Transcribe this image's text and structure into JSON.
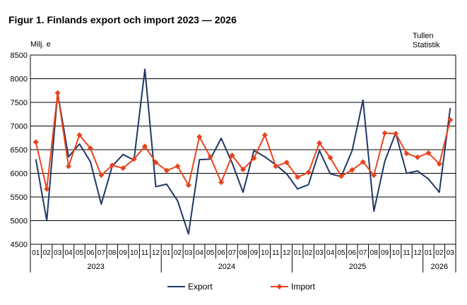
{
  "chart_data": {
    "type": "line",
    "title": "Figur 1. Finlands export och import 2023 — 2026",
    "ylabel": "Milj. e",
    "source": [
      "Tullen",
      "Statistik"
    ],
    "ylim": [
      4500,
      8500
    ],
    "yticks": [
      4500,
      5000,
      5500,
      6000,
      6500,
      7000,
      7500,
      8000,
      8500
    ],
    "grid": true,
    "legend_position": "bottom",
    "months": [
      "01",
      "02",
      "03",
      "04",
      "05",
      "06",
      "07",
      "08",
      "09",
      "10",
      "11",
      "12",
      "01",
      "02",
      "03",
      "04",
      "05",
      "06",
      "07",
      "08",
      "09",
      "10",
      "11",
      "12",
      "01",
      "02",
      "03",
      "04",
      "05",
      "06",
      "07",
      "08",
      "09",
      "10",
      "11",
      "12",
      "01",
      "02",
      "03"
    ],
    "years": [
      {
        "label": "2023",
        "count": 12
      },
      {
        "label": "2024",
        "count": 12
      },
      {
        "label": "2025",
        "count": 12
      },
      {
        "label": "2026",
        "count": 3
      }
    ],
    "series": [
      {
        "name": "Export",
        "color": "#1f3864",
        "marker": "none",
        "values": [
          6300,
          5000,
          7700,
          6350,
          6620,
          6250,
          5350,
          6150,
          6400,
          6280,
          8200,
          5720,
          5770,
          5420,
          4720,
          6290,
          6300,
          6740,
          6220,
          5600,
          6480,
          6350,
          6180,
          5990,
          5670,
          5760,
          6480,
          5990,
          5930,
          6480,
          7550,
          5200,
          6260,
          6850,
          6000,
          6050,
          5880,
          5600,
          7380
        ]
      },
      {
        "name": "Import",
        "color": "#e8441d",
        "marker": "diamond",
        "values": [
          6660,
          5670,
          7700,
          6150,
          6810,
          6530,
          5960,
          6170,
          6110,
          6300,
          6570,
          6230,
          6060,
          6150,
          5750,
          6770,
          6350,
          5810,
          6380,
          6080,
          6320,
          6810,
          6150,
          6230,
          5920,
          6020,
          6640,
          6330,
          5940,
          6070,
          6240,
          5960,
          6850,
          6840,
          6420,
          6340,
          6430,
          6200,
          7130
        ]
      }
    ]
  }
}
